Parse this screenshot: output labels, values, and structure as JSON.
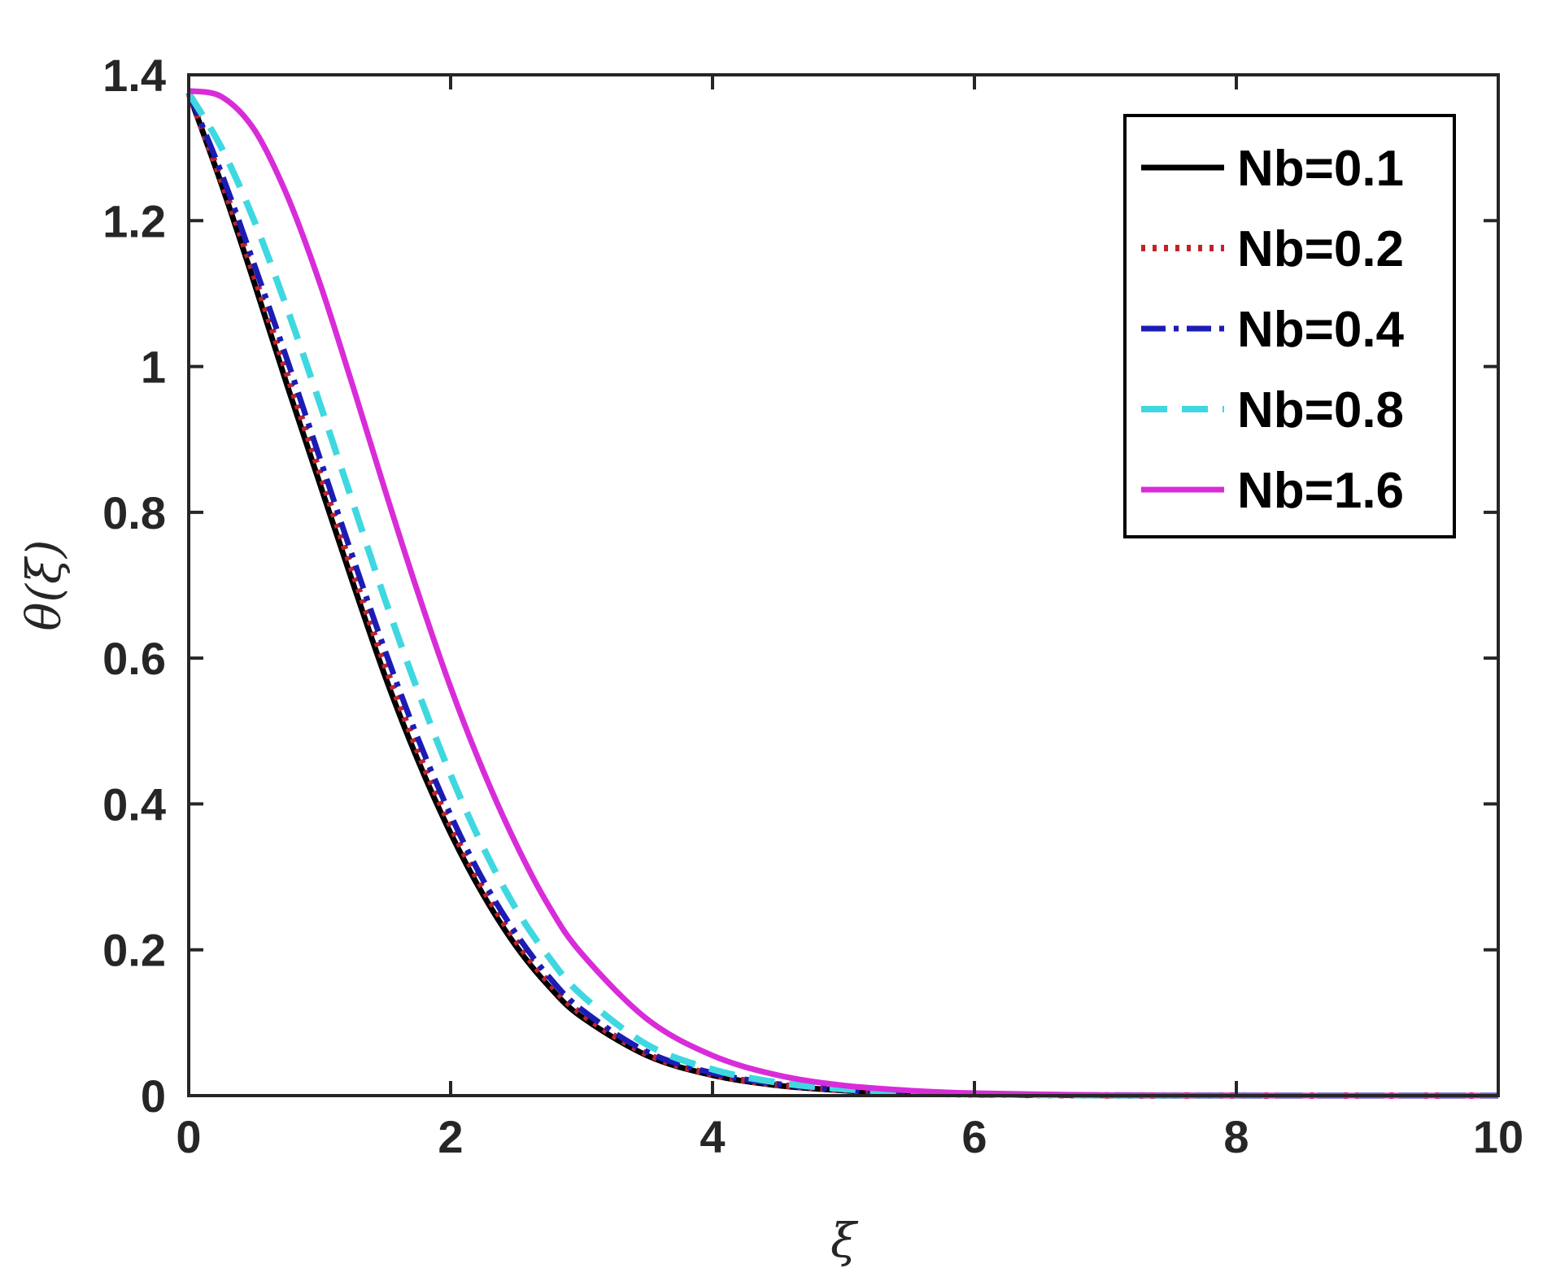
{
  "chart_data": {
    "type": "line",
    "title": "",
    "xlabel": "ξ",
    "ylabel": "θ(ξ)",
    "xlim": [
      0,
      10
    ],
    "ylim": [
      0,
      1.4
    ],
    "xticks": [
      0,
      2,
      4,
      6,
      8,
      10
    ],
    "yticks": [
      0,
      0.2,
      0.4,
      0.6,
      0.8,
      1,
      1.2,
      1.4
    ],
    "xtick_labels": [
      "0",
      "2",
      "4",
      "6",
      "8",
      "10"
    ],
    "ytick_labels": [
      "0",
      "0.2",
      "0.4",
      "0.6",
      "0.8",
      "1",
      "1.2",
      "1.4"
    ],
    "grid": false,
    "legend_position": "top-right",
    "x": [
      0,
      0.25,
      0.5,
      0.75,
      1,
      1.25,
      1.5,
      1.75,
      2,
      2.25,
      2.5,
      2.75,
      3,
      3.5,
      4,
      4.5,
      5,
      5.5,
      6,
      7,
      8,
      9,
      10
    ],
    "series": [
      {
        "name": "Nb=0.1",
        "color": "#000000",
        "dash": "solid",
        "values": [
          1.375,
          1.25,
          1.115,
          0.975,
          0.84,
          0.705,
          0.575,
          0.46,
          0.36,
          0.275,
          0.205,
          0.15,
          0.108,
          0.055,
          0.028,
          0.014,
          0.007,
          0.003,
          0.0015,
          0.0003,
          0.0001,
          0,
          0
        ]
      },
      {
        "name": "Nb=0.2",
        "color": "#c0242a",
        "dash": "dotted",
        "values": [
          1.375,
          1.255,
          1.125,
          0.99,
          0.855,
          0.72,
          0.59,
          0.472,
          0.37,
          0.283,
          0.212,
          0.155,
          0.112,
          0.057,
          0.029,
          0.015,
          0.0075,
          0.0035,
          0.0016,
          0.0003,
          0.0001,
          0,
          0
        ]
      },
      {
        "name": "Nb=0.4",
        "color": "#1c1cb5",
        "dash": "dashdot",
        "values": [
          1.375,
          1.265,
          1.14,
          1.01,
          0.875,
          0.74,
          0.61,
          0.49,
          0.385,
          0.295,
          0.222,
          0.163,
          0.118,
          0.06,
          0.031,
          0.016,
          0.008,
          0.004,
          0.0018,
          0.0004,
          0.0001,
          0,
          0
        ]
      },
      {
        "name": "Nb=0.8",
        "color": "#3fd8e0",
        "dash": "dashed",
        "values": [
          1.375,
          1.3,
          1.2,
          1.08,
          0.95,
          0.815,
          0.68,
          0.555,
          0.44,
          0.34,
          0.256,
          0.19,
          0.138,
          0.07,
          0.036,
          0.018,
          0.009,
          0.0045,
          0.002,
          0.0004,
          0.0001,
          0,
          0
        ]
      },
      {
        "name": "Nb=1.6",
        "color": "#d92cd9",
        "dash": "solid",
        "values": [
          1.378,
          1.37,
          1.325,
          1.235,
          1.115,
          0.975,
          0.83,
          0.69,
          0.56,
          0.445,
          0.345,
          0.26,
          0.195,
          0.105,
          0.055,
          0.028,
          0.014,
          0.007,
          0.0033,
          0.0007,
          0.0001,
          0,
          0
        ]
      }
    ]
  }
}
